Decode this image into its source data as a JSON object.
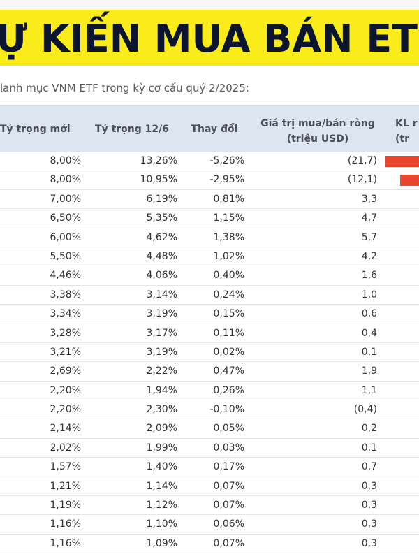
{
  "banner": {
    "title": "Ự KIẾN MUA BÁN ET"
  },
  "subtitle": "lanh mục VNM ETF trong kỳ cơ cấu quý 2/2025:",
  "headers": {
    "new_weight": "Tỷ trọng mới",
    "weight_126": "Tỷ trọng 12/6",
    "change": "Thay đổi",
    "net_line1": "Giá trị mua/bán ròng",
    "net_line2": "(triệu USD)",
    "kl_line1": "KL r",
    "kl_line2": "(tr"
  },
  "colors": {
    "banner": "#f9ec1a",
    "header_bg": "#dde5f1",
    "sell_bar": "#e8452c"
  },
  "rows": [
    {
      "new": "8,00%",
      "w126": "13,26%",
      "chg": "-5,26%",
      "net": "(21,7)",
      "bar": 21.7
    },
    {
      "new": "8,00%",
      "w126": "10,95%",
      "chg": "-2,95%",
      "net": "(12,1)",
      "bar": 12.1
    },
    {
      "new": "7,00%",
      "w126": "6,19%",
      "chg": "0,81%",
      "net": "3,3"
    },
    {
      "new": "6,50%",
      "w126": "5,35%",
      "chg": "1,15%",
      "net": "4,7"
    },
    {
      "new": "6,00%",
      "w126": "4,62%",
      "chg": "1,38%",
      "net": "5,7"
    },
    {
      "new": "5,50%",
      "w126": "4,48%",
      "chg": "1,02%",
      "net": "4,2"
    },
    {
      "new": "4,46%",
      "w126": "4,06%",
      "chg": "0,40%",
      "net": "1,6"
    },
    {
      "new": "3,38%",
      "w126": "3,14%",
      "chg": "0,24%",
      "net": "1,0"
    },
    {
      "new": "3,34%",
      "w126": "3,19%",
      "chg": "0,15%",
      "net": "0,6"
    },
    {
      "new": "3,28%",
      "w126": "3,17%",
      "chg": "0,11%",
      "net": "0,4"
    },
    {
      "new": "3,21%",
      "w126": "3,19%",
      "chg": "0,02%",
      "net": "0,1"
    },
    {
      "new": "2,69%",
      "w126": "2,22%",
      "chg": "0,47%",
      "net": "1,9"
    },
    {
      "new": "2,20%",
      "w126": "1,94%",
      "chg": "0,26%",
      "net": "1,1"
    },
    {
      "new": "2,20%",
      "w126": "2,30%",
      "chg": "-0,10%",
      "net": "(0,4)"
    },
    {
      "new": "2,14%",
      "w126": "2,09%",
      "chg": "0,05%",
      "net": "0,2"
    },
    {
      "new": "2,02%",
      "w126": "1,99%",
      "chg": "0,03%",
      "net": "0,1"
    },
    {
      "new": "1,57%",
      "w126": "1,40%",
      "chg": "0,17%",
      "net": "0,7"
    },
    {
      "new": "1,21%",
      "w126": "1,14%",
      "chg": "0,07%",
      "net": "0,3"
    },
    {
      "new": "1,19%",
      "w126": "1,12%",
      "chg": "0,07%",
      "net": "0,3"
    },
    {
      "new": "1,16%",
      "w126": "1,10%",
      "chg": "0,06%",
      "net": "0,3"
    },
    {
      "new": "1,16%",
      "w126": "1,09%",
      "chg": "0,07%",
      "net": "0,3"
    }
  ]
}
